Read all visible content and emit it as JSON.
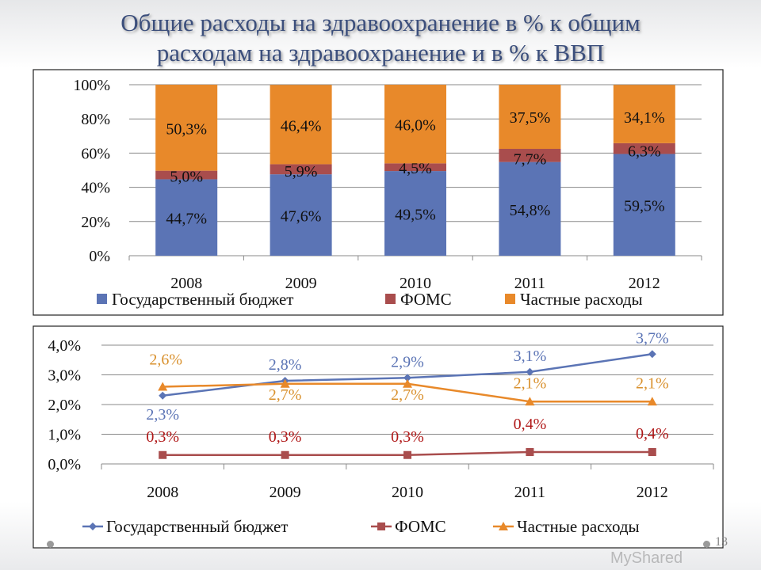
{
  "title_line1": "Общие расходы на здравоохранение в % к общим",
  "title_line2": "расходам на здравоохранение и в % к ВВП",
  "page_number": "13",
  "watermark": "MyShared",
  "chart_data": [
    {
      "type": "bar",
      "stacked": true,
      "categories": [
        "2008",
        "2009",
        "2010",
        "2011",
        "2012"
      ],
      "ylim": [
        0,
        100
      ],
      "yticks": [
        "0%",
        "20%",
        "40%",
        "60%",
        "80%",
        "100%"
      ],
      "grid": true,
      "legend": "bottom",
      "series": [
        {
          "name": "Государственный бюджет",
          "color": "#5b74b5",
          "values": [
            44.7,
            47.6,
            49.5,
            54.8,
            59.5
          ],
          "labels": [
            "44,7%",
            "47,6%",
            "49,5%",
            "54,8%",
            "59,5%"
          ]
        },
        {
          "name": "ФОМС",
          "color": "#a94d4d",
          "values": [
            5.0,
            5.9,
            4.5,
            7.7,
            6.3
          ],
          "labels": [
            "5,0%",
            "5,9%",
            "4,5%",
            "7,7%",
            "6,3%"
          ]
        },
        {
          "name": "Частные расходы",
          "color": "#e8892a",
          "values": [
            50.3,
            46.4,
            46.0,
            37.5,
            34.1
          ],
          "labels": [
            "50,3%",
            "46,4%",
            "46,0%",
            "37,5%",
            "34,1%"
          ]
        }
      ]
    },
    {
      "type": "line",
      "categories": [
        "2008",
        "2009",
        "2010",
        "2011",
        "2012"
      ],
      "ylim": [
        0,
        4
      ],
      "yticks": [
        "0,0%",
        "1,0%",
        "2,0%",
        "3,0%",
        "4,0%"
      ],
      "grid": true,
      "legend": "bottom",
      "series": [
        {
          "name": "Государственный бюджет",
          "color": "#5b74b5",
          "marker": "diamond",
          "values": [
            2.3,
            2.8,
            2.9,
            3.1,
            3.7
          ],
          "labels": [
            "2,3%",
            "2,8%",
            "2,9%",
            "3,1%",
            "3,7%"
          ]
        },
        {
          "name": "ФОМС",
          "color": "#a94d4d",
          "label_color": "#b01818",
          "marker": "square",
          "values": [
            0.3,
            0.3,
            0.3,
            0.4,
            0.4
          ],
          "labels": [
            "0,3%",
            "0,3%",
            "0,3%",
            "0,4%",
            "0,4%"
          ]
        },
        {
          "name": "Частные расходы",
          "color": "#e8892a",
          "label_color": "#d9912e",
          "marker": "triangle",
          "values": [
            2.6,
            2.7,
            2.7,
            2.1,
            2.1
          ],
          "labels": [
            "2,6%",
            "2,7%",
            "2,7%",
            "2,1%",
            "2,1%"
          ]
        }
      ]
    }
  ]
}
